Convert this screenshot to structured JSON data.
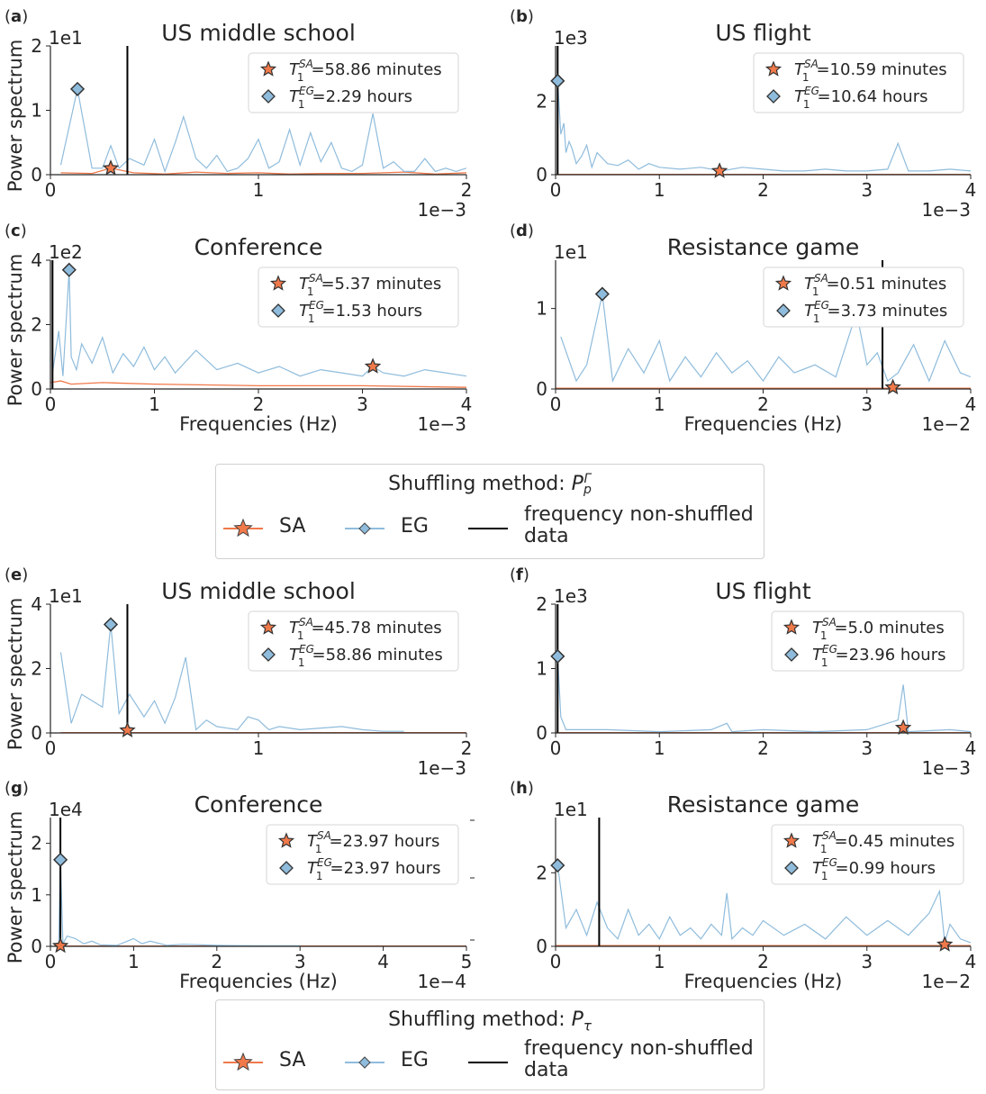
{
  "figure": {
    "colors": {
      "sa": "#f0794a",
      "eg": "#8fbcdc",
      "vline": "#000000",
      "axis": "#262626"
    },
    "legends": [
      {
        "title_prefix": "Shuffling method: ",
        "title_symbol": "P",
        "title_sub": "p",
        "title_sup": "Γ",
        "items": {
          "sa": "SA",
          "eg": "EG",
          "vline": "frequency non-shuffled data"
        }
      },
      {
        "title_prefix": "Shuffling method: ",
        "title_symbol": "P",
        "title_sub": "τ",
        "title_sup": "",
        "items": {
          "sa": "SA",
          "eg": "EG",
          "vline": "frequency non-shuffled data"
        }
      }
    ]
  },
  "chart_data": [
    {
      "panel": "(a)",
      "type": "line",
      "title": "US middle school",
      "ylabel": "Power spectrum",
      "xlabel": "",
      "x_scale_label": "1e−3",
      "y_scale_label": "1e1",
      "xlim": [
        0,
        2
      ],
      "ylim": [
        0,
        2
      ],
      "xticks": [
        "0",
        "1",
        "2"
      ],
      "yticks": [
        "0",
        "1",
        "2"
      ],
      "vline": 0.37,
      "series": [
        {
          "name": "EG",
          "x": [
            0.05,
            0.13,
            0.2,
            0.25,
            0.29,
            0.33,
            0.38,
            0.45,
            0.5,
            0.55,
            0.6,
            0.64,
            0.7,
            0.75,
            0.8,
            0.85,
            0.9,
            0.95,
            1.0,
            1.05,
            1.1,
            1.15,
            1.2,
            1.25,
            1.3,
            1.35,
            1.4,
            1.45,
            1.5,
            1.55,
            1.6,
            1.65,
            1.7,
            1.75,
            1.8,
            1.85,
            1.9,
            1.95,
            2.0
          ],
          "y": [
            0.15,
            1.33,
            0.1,
            0.1,
            0.45,
            0.1,
            0.25,
            0.15,
            0.55,
            0.05,
            0.5,
            0.9,
            0.25,
            0.1,
            0.3,
            0.05,
            0.1,
            0.25,
            0.55,
            0.1,
            0.2,
            0.7,
            0.15,
            0.65,
            0.2,
            0.5,
            0.1,
            0.05,
            0.15,
            0.95,
            0.1,
            0.2,
            0.05,
            0.05,
            0.25,
            0.05,
            0.1,
            0.05,
            0.1
          ]
        },
        {
          "name": "SA",
          "x": [
            0.05,
            0.2,
            0.29,
            0.4,
            0.55,
            0.7,
            0.85,
            1.0,
            1.15,
            1.3,
            1.5,
            1.7,
            1.85,
            2.0
          ],
          "y": [
            0.03,
            0.02,
            0.1,
            0.03,
            0.01,
            0.04,
            0.02,
            0.03,
            0.01,
            0.02,
            0.02,
            0.04,
            0.01,
            0.03
          ]
        }
      ],
      "markers": {
        "SA": {
          "x": 0.29,
          "y": 0.1
        },
        "EG": {
          "x": 0.13,
          "y": 1.33
        }
      },
      "annotations": [
        {
          "series": "SA",
          "T": "T",
          "sub": "1",
          "sup": "SA",
          "value": "=58.86 minutes"
        },
        {
          "series": "EG",
          "T": "T",
          "sub": "1",
          "sup": "EG",
          "value": "=2.29 hours"
        }
      ]
    },
    {
      "panel": "(b)",
      "type": "line",
      "title": "US flight",
      "ylabel": "",
      "xlabel": "",
      "x_scale_label": "1e−3",
      "y_scale_label": "1e3",
      "xlim": [
        0,
        4
      ],
      "ylim": [
        0,
        3.5
      ],
      "xticks": [
        "0",
        "1",
        "2",
        "3",
        "4"
      ],
      "yticks": [
        "0",
        "2"
      ],
      "vline": 0.02,
      "series": [
        {
          "name": "EG",
          "x": [
            0.02,
            0.05,
            0.08,
            0.1,
            0.13,
            0.16,
            0.2,
            0.25,
            0.3,
            0.35,
            0.4,
            0.5,
            0.6,
            0.7,
            0.8,
            0.9,
            1.0,
            1.2,
            1.4,
            1.6,
            1.8,
            2.0,
            2.2,
            2.4,
            2.6,
            2.8,
            3.0,
            3.2,
            3.3,
            3.4,
            3.6,
            3.8,
            4.0
          ],
          "y": [
            2.55,
            1.1,
            1.4,
            0.6,
            0.9,
            0.7,
            0.3,
            0.5,
            0.8,
            0.2,
            0.6,
            0.3,
            0.25,
            0.4,
            0.15,
            0.3,
            0.2,
            0.15,
            0.2,
            0.1,
            0.2,
            0.15,
            0.1,
            0.1,
            0.15,
            0.1,
            0.1,
            0.15,
            0.85,
            0.1,
            0.1,
            0.15,
            0.1
          ]
        },
        {
          "name": "SA",
          "x": [
            0,
            4
          ],
          "y": [
            0.01,
            0.01
          ]
        }
      ],
      "markers": {
        "SA": {
          "x": 1.58,
          "y": 0.1
        },
        "EG": {
          "x": 0.02,
          "y": 2.55
        }
      },
      "annotations": [
        {
          "series": "SA",
          "T": "T",
          "sub": "1",
          "sup": "SA",
          "value": "=10.59 minutes"
        },
        {
          "series": "EG",
          "T": "T",
          "sub": "1",
          "sup": "EG",
          "value": "=10.64 hours"
        }
      ]
    },
    {
      "panel": "(c)",
      "type": "line",
      "title": "Conference",
      "ylabel": "Power spectrum",
      "xlabel": "Frequencies (Hz)",
      "x_scale_label": "1e−3",
      "y_scale_label": "1e2",
      "xlim": [
        0,
        4
      ],
      "ylim": [
        0,
        4
      ],
      "xticks": [
        "0",
        "1",
        "2",
        "3",
        "4"
      ],
      "yticks": [
        "0",
        "2",
        "4"
      ],
      "vline": 0.02,
      "series": [
        {
          "name": "EG",
          "x": [
            0.02,
            0.08,
            0.12,
            0.18,
            0.2,
            0.25,
            0.3,
            0.4,
            0.5,
            0.6,
            0.7,
            0.8,
            0.9,
            1.0,
            1.1,
            1.2,
            1.4,
            1.6,
            1.8,
            2.0,
            2.2,
            2.4,
            2.6,
            2.8,
            3.0,
            3.1,
            3.2,
            3.4,
            3.6,
            3.8,
            4.0
          ],
          "y": [
            0.5,
            1.8,
            0.4,
            3.7,
            1.0,
            0.6,
            1.4,
            0.8,
            1.6,
            0.5,
            1.1,
            0.7,
            1.3,
            0.6,
            1.0,
            0.5,
            1.2,
            0.6,
            0.8,
            0.5,
            0.7,
            0.4,
            0.6,
            0.5,
            0.4,
            0.7,
            0.5,
            0.4,
            0.6,
            0.5,
            0.4
          ]
        },
        {
          "name": "SA",
          "x": [
            0,
            0.1,
            0.2,
            0.5,
            1.0,
            2.0,
            3.0,
            4.0
          ],
          "y": [
            0.2,
            0.25,
            0.15,
            0.2,
            0.15,
            0.1,
            0.1,
            0.05
          ]
        }
      ],
      "markers": {
        "SA": {
          "x": 3.1,
          "y": 0.7
        },
        "EG": {
          "x": 0.18,
          "y": 3.7
        }
      },
      "annotations": [
        {
          "series": "SA",
          "T": "T",
          "sub": "1",
          "sup": "SA",
          "value": "=5.37 minutes"
        },
        {
          "series": "EG",
          "T": "T",
          "sub": "1",
          "sup": "EG",
          "value": "=1.53 hours"
        }
      ]
    },
    {
      "panel": "(d)",
      "type": "line",
      "title": "Resistance game",
      "ylabel": "",
      "xlabel": "Frequencies (Hz)",
      "x_scale_label": "1e−2",
      "y_scale_label": "1e1",
      "xlim": [
        0,
        4
      ],
      "ylim": [
        0,
        1.6
      ],
      "xticks": [
        "0",
        "1",
        "2",
        "3",
        "4"
      ],
      "yticks": [
        "0",
        "1"
      ],
      "vline": 3.15,
      "series": [
        {
          "name": "EG",
          "x": [
            0.05,
            0.2,
            0.3,
            0.45,
            0.55,
            0.7,
            0.85,
            1.0,
            1.1,
            1.25,
            1.4,
            1.55,
            1.7,
            1.85,
            2.0,
            2.15,
            2.3,
            2.5,
            2.7,
            2.9,
            3.0,
            3.1,
            3.2,
            3.3,
            3.45,
            3.6,
            3.75,
            3.9,
            4.0
          ],
          "y": [
            0.65,
            0.1,
            0.3,
            1.18,
            0.1,
            0.5,
            0.2,
            0.6,
            0.1,
            0.4,
            0.15,
            0.45,
            0.2,
            0.35,
            0.1,
            0.4,
            0.2,
            0.3,
            0.15,
            0.95,
            0.3,
            0.45,
            0.1,
            0.2,
            0.55,
            0.1,
            0.6,
            0.2,
            0.15
          ]
        },
        {
          "name": "SA",
          "x": [
            0,
            4
          ],
          "y": [
            0.01,
            0.01
          ]
        }
      ],
      "markers": {
        "SA": {
          "x": 3.25,
          "y": 0.02
        },
        "EG": {
          "x": 0.45,
          "y": 1.18
        }
      },
      "annotations": [
        {
          "series": "SA",
          "T": "T",
          "sub": "1",
          "sup": "SA",
          "value": "=0.51 minutes"
        },
        {
          "series": "EG",
          "T": "T",
          "sub": "1",
          "sup": "EG",
          "value": "=3.73 minutes"
        }
      ]
    },
    {
      "panel": "(e)",
      "type": "line",
      "title": "US middle school",
      "ylabel": "Power spectrum",
      "xlabel": "",
      "x_scale_label": "1e−3",
      "y_scale_label": "1e1",
      "xlim": [
        0,
        2
      ],
      "ylim": [
        0,
        4
      ],
      "xticks": [
        "0",
        "1",
        "2"
      ],
      "yticks": [
        "0",
        "2",
        "4"
      ],
      "vline": 0.37,
      "series": [
        {
          "name": "EG",
          "x": [
            0.05,
            0.1,
            0.15,
            0.25,
            0.29,
            0.33,
            0.38,
            0.45,
            0.5,
            0.55,
            0.6,
            0.65,
            0.7,
            0.75,
            0.8,
            0.9,
            0.95,
            1.0,
            1.05,
            1.1,
            1.2,
            1.3,
            1.4,
            1.5,
            1.6,
            1.7
          ],
          "y": [
            2.5,
            0.3,
            1.2,
            0.8,
            3.37,
            0.6,
            1.2,
            0.5,
            1.0,
            0.3,
            1.1,
            2.35,
            0.1,
            0.4,
            0.2,
            0.1,
            0.5,
            0.4,
            0.1,
            0.2,
            0.1,
            0.15,
            0.2,
            0.1,
            0.05,
            0.05
          ]
        },
        {
          "name": "SA",
          "x": [
            0.05,
            2.0
          ],
          "y": [
            0.01,
            0.01
          ]
        }
      ],
      "markers": {
        "SA": {
          "x": 0.37,
          "y": 0.08
        },
        "EG": {
          "x": 0.29,
          "y": 3.37
        }
      },
      "annotations": [
        {
          "series": "SA",
          "T": "T",
          "sub": "1",
          "sup": "SA",
          "value": "=45.78 minutes"
        },
        {
          "series": "EG",
          "T": "T",
          "sub": "1",
          "sup": "EG",
          "value": "=58.86 minutes"
        }
      ]
    },
    {
      "panel": "(f)",
      "type": "line",
      "title": "US flight",
      "ylabel": "",
      "xlabel": "",
      "x_scale_label": "1e−3",
      "y_scale_label": "1e3",
      "xlim": [
        0,
        4
      ],
      "ylim": [
        0,
        2
      ],
      "xticks": [
        "0",
        "1",
        "2",
        "3",
        "4"
      ],
      "yticks": [
        "0",
        "1",
        "2"
      ],
      "vline": 0.02,
      "series": [
        {
          "name": "EG",
          "x": [
            0.02,
            0.05,
            0.1,
            0.5,
            1.0,
            1.5,
            1.65,
            1.7,
            2.0,
            2.5,
            3.0,
            3.3,
            3.35,
            3.4,
            3.8,
            4.0
          ],
          "y": [
            1.19,
            0.25,
            0.05,
            0.05,
            0.02,
            0.05,
            0.15,
            0.02,
            0.05,
            0.02,
            0.05,
            0.2,
            0.75,
            0.02,
            0.05,
            0.02
          ]
        },
        {
          "name": "SA",
          "x": [
            0,
            4
          ],
          "y": [
            0.005,
            0.005
          ]
        }
      ],
      "markers": {
        "SA": {
          "x": 3.35,
          "y": 0.08
        },
        "EG": {
          "x": 0.02,
          "y": 1.19
        }
      },
      "annotations": [
        {
          "series": "SA",
          "T": "T",
          "sub": "1",
          "sup": "SA",
          "value": "=5.0 minutes"
        },
        {
          "series": "EG",
          "T": "T",
          "sub": "1",
          "sup": "EG",
          "value": "=23.96 hours"
        }
      ]
    },
    {
      "panel": "(g)",
      "type": "line",
      "title": "Conference",
      "ylabel": "Power spectrum",
      "xlabel": "Frequencies (Hz)",
      "x_scale_label": "1e−4",
      "y_scale_label": "1e4",
      "xlim": [
        0,
        5
      ],
      "ylim": [
        0,
        2.5
      ],
      "xticks": [
        "0",
        "1",
        "2",
        "3",
        "4",
        "5"
      ],
      "yticks": [
        "0",
        "1",
        "2"
      ],
      "vline": 0.12,
      "series": [
        {
          "name": "EG",
          "x": [
            0.1,
            0.12,
            0.15,
            0.2,
            0.3,
            0.4,
            0.5,
            0.6,
            0.8,
            1.0,
            1.1,
            1.2,
            1.4,
            1.6,
            2.0,
            2.5,
            3.0
          ],
          "y": [
            0.02,
            1.68,
            0.05,
            0.2,
            0.15,
            0.05,
            0.1,
            0.03,
            0.02,
            0.15,
            0.05,
            0.1,
            0.02,
            0.04,
            0.02,
            0.01,
            0.01
          ]
        },
        {
          "name": "SA",
          "x": [
            0.05,
            5.0
          ],
          "y": [
            0.005,
            0.005
          ]
        }
      ],
      "markers": {
        "SA": {
          "x": 0.12,
          "y": 0.01
        },
        "EG": {
          "x": 0.12,
          "y": 1.68
        }
      },
      "annotations": [
        {
          "series": "SA",
          "T": "T",
          "sub": "1",
          "sup": "SA",
          "value": "=23.97 hours"
        },
        {
          "series": "EG",
          "T": "T",
          "sub": "1",
          "sup": "EG",
          "value": "=23.97 hours"
        }
      ]
    },
    {
      "panel": "(h)",
      "type": "line",
      "title": "Resistance game",
      "ylabel": "",
      "xlabel": "Frequencies (Hz)",
      "x_scale_label": "1e−2",
      "y_scale_label": "1e1",
      "xlim": [
        0,
        4
      ],
      "ylim": [
        0,
        3.5
      ],
      "xticks": [
        "0",
        "1",
        "2",
        "3",
        "4"
      ],
      "yticks": [
        "0",
        "2"
      ],
      "vline": 0.42,
      "series": [
        {
          "name": "EG",
          "x": [
            0.02,
            0.1,
            0.2,
            0.3,
            0.4,
            0.5,
            0.6,
            0.7,
            0.8,
            0.9,
            1.0,
            1.1,
            1.2,
            1.3,
            1.4,
            1.5,
            1.6,
            1.65,
            1.7,
            1.8,
            1.9,
            2.0,
            2.2,
            2.4,
            2.6,
            2.8,
            3.0,
            3.2,
            3.4,
            3.6,
            3.7,
            3.75,
            3.8,
            3.9,
            4.0
          ],
          "y": [
            2.2,
            0.5,
            1.0,
            0.3,
            1.2,
            0.5,
            0.2,
            1.0,
            0.3,
            0.6,
            0.2,
            0.8,
            0.3,
            0.5,
            0.2,
            0.6,
            0.3,
            1.45,
            0.2,
            0.5,
            0.3,
            0.7,
            0.3,
            0.6,
            0.2,
            0.8,
            0.3,
            0.7,
            0.3,
            0.9,
            1.5,
            0.1,
            0.6,
            0.2,
            0.1
          ]
        },
        {
          "name": "SA",
          "x": [
            0,
            4
          ],
          "y": [
            0.02,
            0.02
          ]
        }
      ],
      "markers": {
        "SA": {
          "x": 3.75,
          "y": 0.05
        },
        "EG": {
          "x": 0.02,
          "y": 2.2
        }
      },
      "annotations": [
        {
          "series": "SA",
          "T": "T",
          "sub": "1",
          "sup": "SA",
          "value": "=0.45 minutes"
        },
        {
          "series": "EG",
          "T": "T",
          "sub": "1",
          "sup": "EG",
          "value": "=0.99 hours"
        }
      ]
    }
  ]
}
